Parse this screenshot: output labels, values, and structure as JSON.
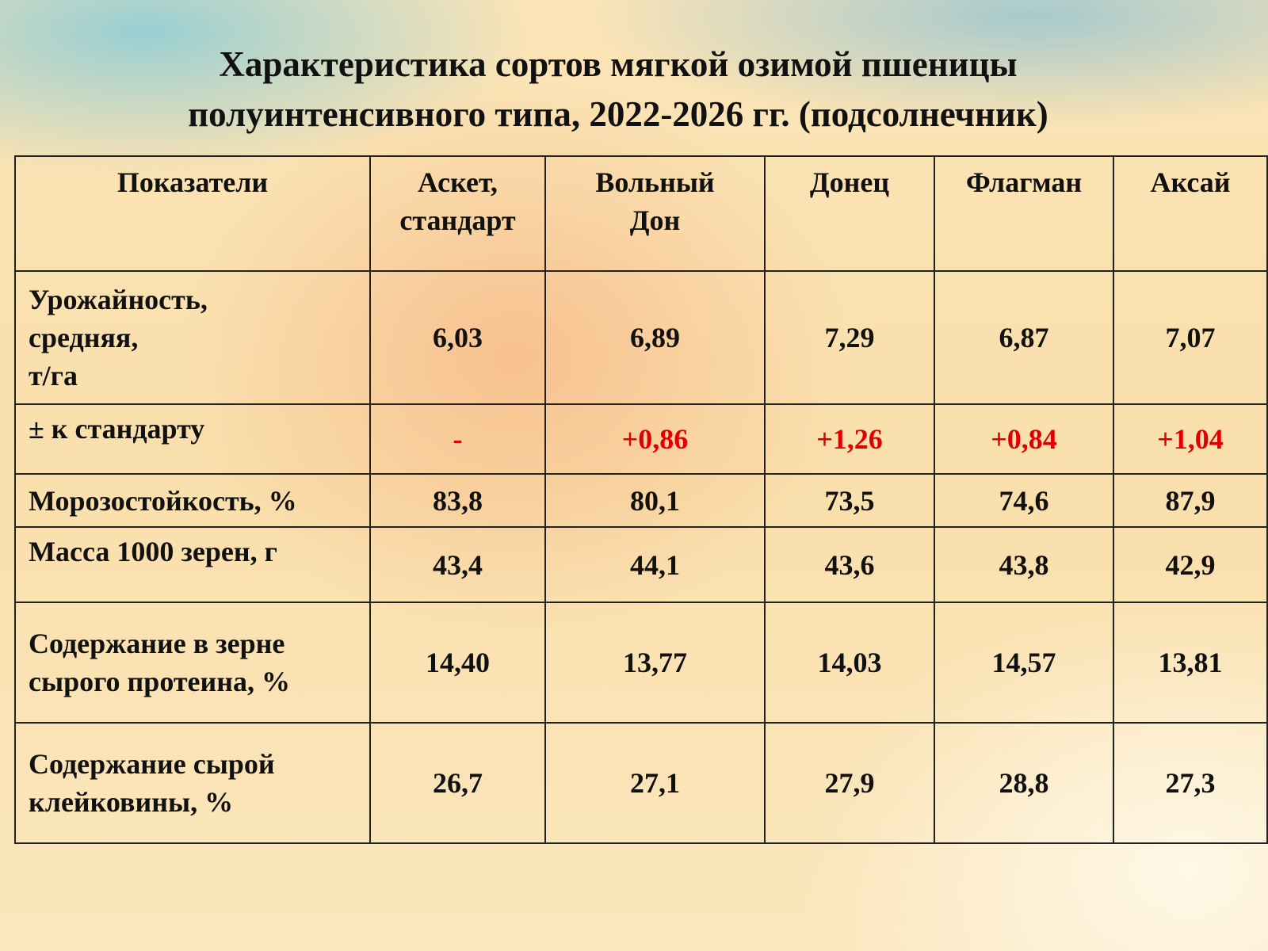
{
  "title": [
    "Характеристика сортов мягкой озимой пшеницы",
    "полуинтенсивного типа, 2022-2026 гг. (подсолнечник)"
  ],
  "table": {
    "header": [
      "Показатели",
      "Аскет,\nстандарт",
      "Вольный\nДон",
      "Донец",
      "Флагман",
      "Аксай"
    ],
    "rows": [
      [
        "Урожайность,\nсредняя,\nт/га",
        "6,03",
        "6,89",
        "7,29",
        "6,87",
        "7,07"
      ],
      [
        "± к стандарту",
        "-",
        "+0,86",
        "+1,26",
        "+0,84",
        "+1,04"
      ],
      [
        "Морозостойкость, %",
        "83,8",
        "80,1",
        "73,5",
        "74,6",
        "87,9"
      ],
      [
        "Масса 1000 зерен, г",
        "43,4",
        "44,1",
        "43,6",
        "43,8",
        "42,9"
      ],
      [
        "Содержание в зерне\nсырого протеина, %",
        "14,40",
        "13,77",
        "14,03",
        "14,57",
        "13,81"
      ],
      [
        "Содержание сырой\nклейковины, %",
        "26,7",
        "27,1",
        "27,9",
        "28,8",
        "27,3"
      ]
    ]
  }
}
